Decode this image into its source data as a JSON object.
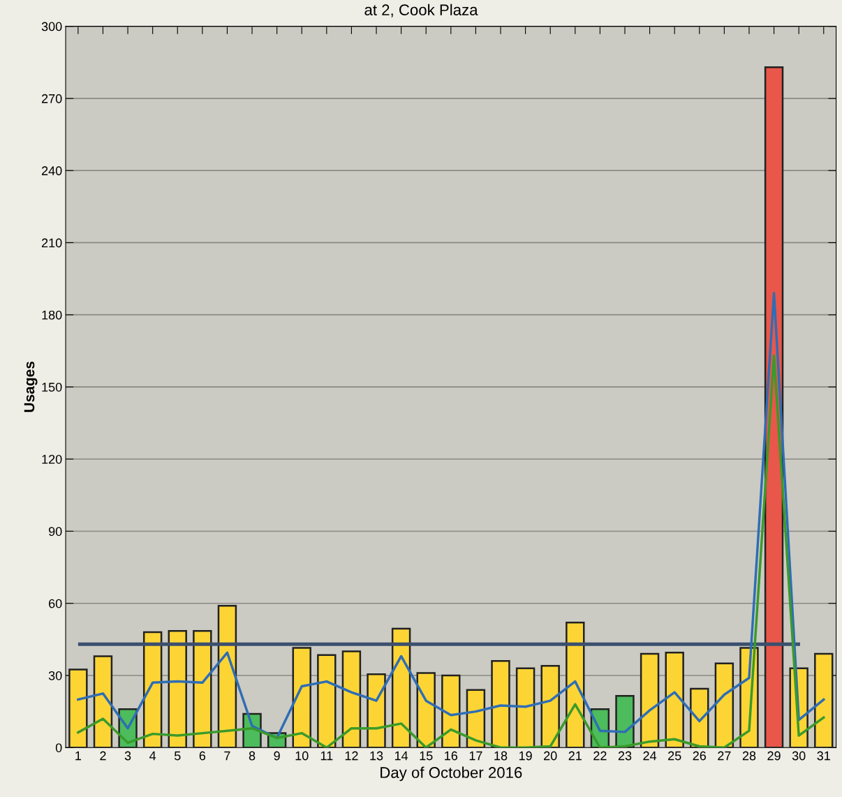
{
  "chart_data": {
    "type": "bar",
    "title": "at 2, Cook Plaza",
    "xlabel": "Day of October 2016",
    "ylabel": "Usages",
    "categories": [
      "1",
      "2",
      "3",
      "4",
      "5",
      "6",
      "7",
      "8",
      "9",
      "10",
      "11",
      "12",
      "13",
      "14",
      "15",
      "16",
      "17",
      "18",
      "19",
      "20",
      "21",
      "22",
      "23",
      "24",
      "25",
      "26",
      "27",
      "28",
      "29",
      "30",
      "31"
    ],
    "series": [
      {
        "values": [
          32.5,
          38,
          16,
          48,
          48.5,
          48.5,
          59,
          14,
          6,
          41.5,
          38.5,
          40,
          30.5,
          49.5,
          31,
          30,
          24,
          36,
          33,
          34,
          52,
          16,
          21.5,
          39,
          39.5,
          24.5,
          35,
          41.5,
          283,
          33,
          39
        ],
        "colors": [
          "#fcd535",
          "#fcd535",
          "#4cbc5c",
          "#fcd535",
          "#fcd535",
          "#fcd535",
          "#fcd535",
          "#4cbc5c",
          "#4cbc5c",
          "#fcd535",
          "#fcd535",
          "#fcd535",
          "#fcd535",
          "#fcd535",
          "#fcd535",
          "#fcd535",
          "#fcd535",
          "#fcd535",
          "#fcd535",
          "#fcd535",
          "#fcd535",
          "#4cbc5c",
          "#4cbc5c",
          "#fcd535",
          "#fcd535",
          "#fcd535",
          "#fcd535",
          "#fcd535",
          "#e8574a",
          "#fcd535",
          "#fcd535"
        ]
      },
      {
        "type": "line",
        "color": "#2f6db5",
        "values": [
          20,
          22.5,
          8,
          27,
          27.5,
          27,
          39.5,
          9,
          4,
          25.5,
          27.5,
          23,
          19.5,
          38,
          19.5,
          13.5,
          15,
          17.5,
          17,
          19.5,
          27.5,
          7,
          6.5,
          15.5,
          23,
          11,
          22,
          29,
          189,
          11.5,
          20
        ]
      },
      {
        "type": "line",
        "color": "#3a9a2a",
        "values": [
          6.3,
          12,
          2,
          5.7,
          5,
          6,
          7,
          8,
          4,
          6,
          0,
          8,
          8,
          10,
          0,
          7.5,
          3,
          0,
          0,
          0.5,
          18,
          0,
          0.5,
          2.5,
          3.5,
          0.5,
          0,
          7,
          163,
          5,
          12.5
        ]
      }
    ],
    "ylim": [
      0,
      300
    ],
    "yticks": [
      0,
      30,
      60,
      90,
      120,
      150,
      180,
      210,
      240,
      270,
      300
    ],
    "grid": "y",
    "ref_lines": [
      {
        "axis": "y",
        "value": 43,
        "color": "#3b4f6e"
      }
    ]
  }
}
